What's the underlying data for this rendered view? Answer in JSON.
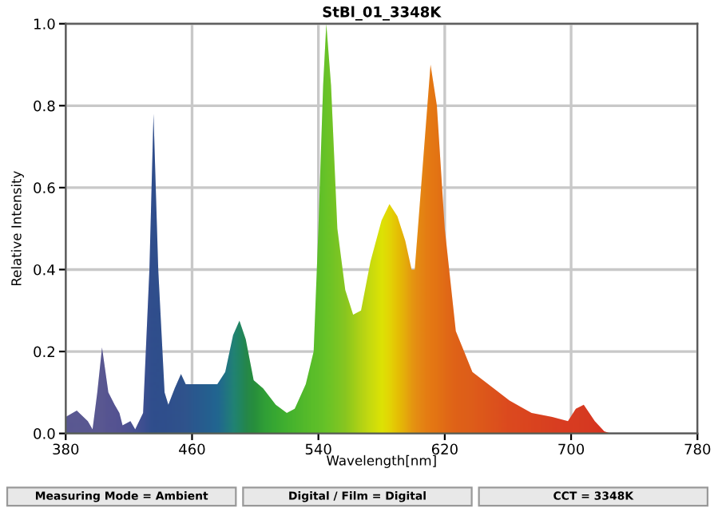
{
  "chart_data": {
    "type": "area",
    "title": "StBl_01_3348K",
    "xlabel": "Wavelength[nm]",
    "ylabel": "Relative Intensity",
    "xlim": [
      380,
      780
    ],
    "ylim": [
      0,
      1.0
    ],
    "xticks": [
      380,
      460,
      540,
      620,
      700,
      780
    ],
    "yticks": [
      {
        "value": 0,
        "label": "0.0"
      },
      0.2,
      0.4,
      0.6,
      0.8,
      {
        "value": 1.0,
        "label": "1.0"
      }
    ],
    "grid": true,
    "annotations": [
      "Measuring Mode = Ambient",
      "Digital / Film = Digital",
      "CCT = 3348K"
    ],
    "series": [
      {
        "x": [
          380,
          387,
          394,
          397,
          400,
          403,
          407,
          411,
          414,
          416,
          421,
          424,
          429,
          433,
          435.6,
          438.6,
          442.6,
          445,
          449,
          453,
          456,
          461,
          476,
          481,
          486,
          490,
          494,
          499,
          505,
          513,
          520,
          525,
          532,
          537,
          540,
          543,
          545,
          548,
          552,
          557,
          562,
          567,
          573,
          580,
          585,
          590,
          595,
          599,
          601,
          605,
          609,
          611,
          615,
          620,
          627,
          637.5,
          651,
          661,
          675,
          688,
          698,
          703,
          708,
          715,
          721,
          725,
          780
        ],
        "values": [
          0.04,
          0.056,
          0.03,
          0.01,
          0.1,
          0.21,
          0.1,
          0.07,
          0.05,
          0.02,
          0.03,
          0.01,
          0.05,
          0.4,
          0.78,
          0.4,
          0.1,
          0.07,
          0.11,
          0.145,
          0.12,
          0.12,
          0.12,
          0.15,
          0.24,
          0.275,
          0.23,
          0.13,
          0.11,
          0.07,
          0.05,
          0.06,
          0.12,
          0.2,
          0.5,
          0.85,
          1.0,
          0.85,
          0.5,
          0.35,
          0.29,
          0.3,
          0.42,
          0.52,
          0.56,
          0.53,
          0.47,
          0.4,
          0.4,
          0.6,
          0.8,
          0.9,
          0.8,
          0.5,
          0.25,
          0.15,
          0.11,
          0.08,
          0.05,
          0.04,
          0.03,
          0.06,
          0.07,
          0.03,
          0.005,
          0,
          0
        ],
        "colors": [
          "#5a4aa0",
          "#5a4aa0",
          "#5a4aa0",
          "#5a4aa0",
          "#5a4aa0",
          "#5a4aa0",
          "#5646a0",
          "#5646a0",
          "#5244a0",
          "#5244a0",
          "#4a42a0",
          "#4442a0",
          "#3a40a0",
          "#2e3f9c",
          "#2a3f9a",
          "#2a3f9a",
          "#2a409a",
          "#2a409a",
          "#2a429a",
          "#2a449a",
          "#2a469a",
          "#244a9c",
          "#1a5aa0",
          "#1a6a90",
          "#1a7a80",
          "#1a7e6a",
          "#1e8050",
          "#208840",
          "#2a9a3a",
          "#34a634",
          "#40b030",
          "#48b42e",
          "#54ba2c",
          "#5cbf2a",
          "#60c02a",
          "#66c228",
          "#6cc428",
          "#74c426",
          "#80c624",
          "#90c820",
          "#a8d018",
          "#c0d614",
          "#d8e00c",
          "#f0e800",
          "#f6d800",
          "#f8c000",
          "#f8a808",
          "#f8920e",
          "#f88a10",
          "#f87e10",
          "#f87410",
          "#f87010",
          "#f66a12",
          "#f46014",
          "#f25616",
          "#f05018",
          "#ee441c",
          "#ee3a1e",
          "#ec341e",
          "#ea2e20",
          "#ea2a20",
          "#ea2a20",
          "#e82820",
          "#e82620",
          "#e82020",
          "#e82020",
          "#e82020"
        ]
      }
    ]
  }
}
